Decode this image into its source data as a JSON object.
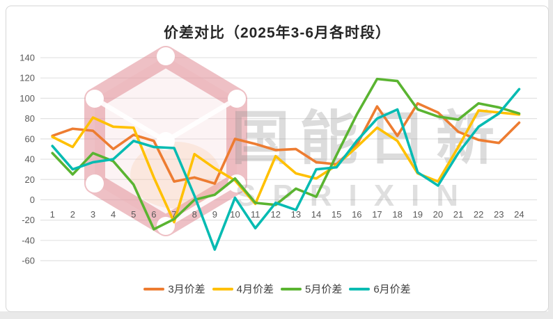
{
  "page": {
    "background": "#ffffff",
    "frame_color": "#d6d6d6"
  },
  "title": "价差对比（2025年3-6月各时段）",
  "watermark": {
    "cjk_text": "国能日新",
    "latin_text": "SPRIXIN",
    "logo_band_color": "#E08C96",
    "logo_fill_color": "#F3D3D8",
    "text_color": "#8c8c8c"
  },
  "chart_data": {
    "type": "line",
    "title": "价差对比（2025年3-6月各时段）",
    "xlabel": "",
    "ylabel": "",
    "x": [
      1,
      2,
      3,
      4,
      5,
      6,
      7,
      8,
      9,
      10,
      11,
      12,
      13,
      14,
      15,
      16,
      17,
      18,
      19,
      20,
      21,
      22,
      23,
      24
    ],
    "ylim": [
      -60,
      140
    ],
    "y_ticks": [
      140,
      120,
      100,
      80,
      60,
      40,
      20,
      0,
      -20,
      -40,
      -60
    ],
    "grid": "horizontal-only",
    "gridline_color": "#e2e2e2",
    "axis_text_color": "#595959",
    "legend_position": "bottom",
    "series": [
      {
        "name": "3月价差",
        "color": "#ED7C31",
        "values": [
          63,
          70,
          68,
          50,
          64,
          58,
          18,
          22,
          16,
          60,
          55,
          49,
          50,
          37,
          35,
          54,
          92,
          63,
          95,
          86,
          67,
          59,
          56,
          76
        ]
      },
      {
        "name": "4月价差",
        "color": "#FFC000",
        "values": [
          62,
          52,
          81,
          72,
          71,
          22,
          -22,
          45,
          31,
          19,
          -4,
          43,
          26,
          21,
          34,
          52,
          71,
          58,
          26,
          18,
          52,
          88,
          86,
          84
        ]
      },
      {
        "name": "5月价差",
        "color": "#5AB431",
        "values": [
          46,
          25,
          46,
          38,
          15,
          -29,
          -19,
          0,
          5,
          21,
          -3,
          -5,
          11,
          3,
          44,
          84,
          119,
          117,
          89,
          82,
          79,
          95,
          91,
          85
        ]
      },
      {
        "name": "6月价差",
        "color": "#06BBB2",
        "values": [
          53,
          30,
          37,
          40,
          58,
          52,
          51,
          4,
          -49,
          2,
          -28,
          -3,
          -10,
          30,
          32,
          58,
          80,
          89,
          27,
          14,
          46,
          72,
          85,
          109
        ]
      }
    ]
  }
}
